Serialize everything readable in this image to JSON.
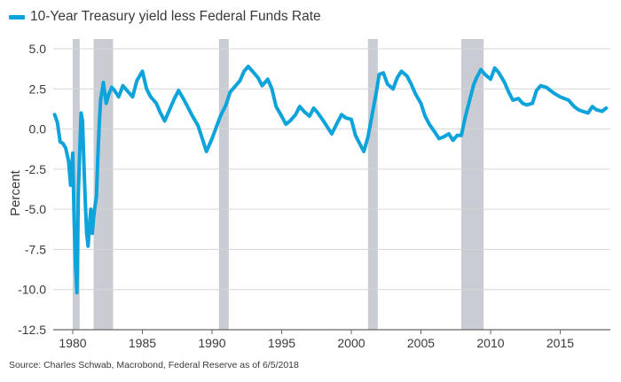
{
  "legend": {
    "label": "10-Year Treasury yield less Federal Funds Rate"
  },
  "source": "Source: Charles Schwab, Macrobond, Federal Reserve as of 6/5/2018",
  "colors": {
    "series": "#0fa3dc",
    "recession": "#c9cdd3",
    "grid": "#d6d6d6",
    "axis": "#666666"
  },
  "chart_data": {
    "type": "line",
    "title": "",
    "ylabel": "Percent",
    "xlabel": "",
    "xlim": [
      1978.6,
      2018.6
    ],
    "ylim": [
      -12.5,
      5.0
    ],
    "yticks": [
      5.0,
      2.5,
      0.0,
      -2.5,
      -5.0,
      -7.5,
      -10.0,
      -12.5
    ],
    "ytick_labels": [
      "5.0",
      "2.5",
      "0.0",
      "-2.5",
      "-5.0",
      "-7.5",
      "-10.0",
      "-12.5"
    ],
    "xticks": [
      1980,
      1985,
      1990,
      1995,
      2000,
      2005,
      2010,
      2015
    ],
    "xtick_labels": [
      "1980",
      "1985",
      "1990",
      "1995",
      "2000",
      "2005",
      "2010",
      "2015"
    ],
    "grid": "horizontal",
    "legend_position": "top-left",
    "recessions": [
      [
        1980.0,
        1980.5
      ],
      [
        1981.5,
        1982.9
      ],
      [
        1990.5,
        1991.2
      ],
      [
        2001.2,
        2001.9
      ],
      [
        2007.9,
        2009.5
      ]
    ],
    "series": [
      {
        "name": "10-Year Treasury yield less Federal Funds Rate",
        "x": [
          1978.7,
          1978.9,
          1979.1,
          1979.3,
          1979.5,
          1979.7,
          1979.85,
          1980.0,
          1980.1,
          1980.2,
          1980.3,
          1980.4,
          1980.5,
          1980.6,
          1980.7,
          1980.8,
          1980.9,
          1981.0,
          1981.1,
          1981.2,
          1981.3,
          1981.4,
          1981.5,
          1981.6,
          1981.7,
          1981.8,
          1981.9,
          1982.0,
          1982.2,
          1982.4,
          1982.6,
          1982.8,
          1983.0,
          1983.3,
          1983.6,
          1984.0,
          1984.3,
          1984.6,
          1985.0,
          1985.3,
          1985.6,
          1986.0,
          1986.3,
          1986.6,
          1987.0,
          1987.3,
          1987.6,
          1988.0,
          1988.3,
          1988.6,
          1989.0,
          1989.3,
          1989.6,
          1990.0,
          1990.3,
          1990.6,
          1991.0,
          1991.3,
          1991.6,
          1992.0,
          1992.3,
          1992.6,
          1993.0,
          1993.3,
          1993.6,
          1994.0,
          1994.3,
          1994.6,
          1995.0,
          1995.3,
          1995.6,
          1996.0,
          1996.3,
          1996.6,
          1997.0,
          1997.3,
          1997.6,
          1998.0,
          1998.3,
          1998.6,
          1999.0,
          1999.3,
          1999.6,
          2000.0,
          2000.3,
          2000.6,
          2000.9,
          2001.2,
          2001.5,
          2001.8,
          2002.0,
          2002.3,
          2002.6,
          2003.0,
          2003.3,
          2003.6,
          2004.0,
          2004.3,
          2004.6,
          2005.0,
          2005.3,
          2005.6,
          2006.0,
          2006.3,
          2006.6,
          2007.0,
          2007.3,
          2007.6,
          2007.9,
          2008.2,
          2008.5,
          2008.8,
          2009.0,
          2009.3,
          2009.6,
          2010.0,
          2010.3,
          2010.6,
          2011.0,
          2011.3,
          2011.6,
          2012.0,
          2012.3,
          2012.6,
          2013.0,
          2013.3,
          2013.6,
          2014.0,
          2014.3,
          2014.6,
          2015.0,
          2015.3,
          2015.6,
          2016.0,
          2016.3,
          2016.6,
          2017.0,
          2017.3,
          2017.6,
          2018.0,
          2018.3
        ],
        "y": [
          0.9,
          0.4,
          -0.8,
          -0.9,
          -1.2,
          -2.0,
          -3.5,
          -1.5,
          -5.5,
          -8.5,
          -10.2,
          -4.0,
          -1.5,
          1.0,
          0.5,
          -2.0,
          -4.5,
          -6.5,
          -7.3,
          -6.0,
          -5.0,
          -6.5,
          -5.5,
          -4.8,
          -4.2,
          -1.8,
          0.2,
          1.8,
          2.9,
          1.6,
          2.2,
          2.6,
          2.4,
          2.0,
          2.7,
          2.3,
          2.0,
          3.0,
          3.6,
          2.5,
          2.0,
          1.6,
          1.0,
          0.5,
          1.3,
          1.9,
          2.4,
          1.8,
          1.3,
          0.8,
          0.2,
          -0.6,
          -1.4,
          -0.6,
          0.1,
          0.8,
          1.5,
          2.3,
          2.6,
          3.0,
          3.6,
          3.9,
          3.5,
          3.2,
          2.7,
          3.1,
          2.5,
          1.4,
          0.8,
          0.3,
          0.5,
          0.9,
          1.4,
          1.1,
          0.8,
          1.3,
          1.0,
          0.5,
          0.1,
          -0.3,
          0.4,
          0.9,
          0.7,
          0.6,
          -0.4,
          -0.9,
          -1.4,
          -0.5,
          0.9,
          2.3,
          3.4,
          3.5,
          2.8,
          2.5,
          3.2,
          3.6,
          3.3,
          2.8,
          2.2,
          1.6,
          0.8,
          0.3,
          -0.2,
          -0.6,
          -0.5,
          -0.3,
          -0.7,
          -0.4,
          -0.4,
          0.8,
          1.8,
          2.8,
          3.2,
          3.7,
          3.4,
          3.1,
          3.8,
          3.5,
          2.9,
          2.3,
          1.8,
          1.9,
          1.6,
          1.5,
          1.6,
          2.4,
          2.7,
          2.6,
          2.4,
          2.2,
          2.0,
          1.9,
          1.8,
          1.4,
          1.2,
          1.1,
          1.0,
          1.4,
          1.2,
          1.1,
          1.3
        ]
      }
    ]
  }
}
